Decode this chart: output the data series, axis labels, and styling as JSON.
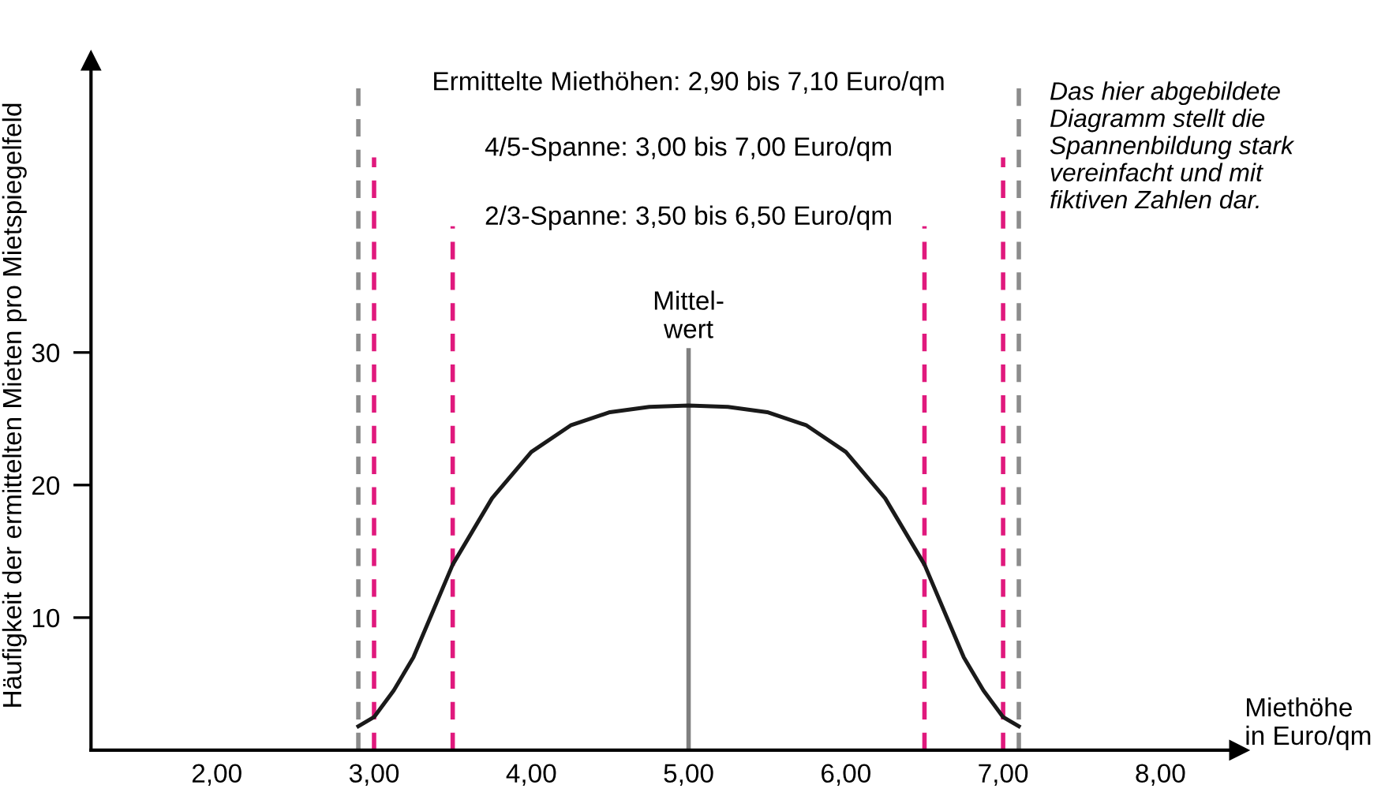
{
  "chart_data": {
    "type": "line",
    "xlabel": "Miethöhe\nin Euro/qm",
    "ylabel": "Häufigkeit der ermittelten Mieten pro Mietspiegelfeld",
    "x": [
      2.9,
      3.0,
      3.125,
      3.25,
      3.375,
      3.5,
      3.625,
      3.75,
      4.0,
      4.25,
      4.5,
      4.75,
      5.0,
      5.25,
      5.5,
      5.75,
      6.0,
      6.25,
      6.375,
      6.5,
      6.625,
      6.75,
      6.875,
      7.0,
      7.1
    ],
    "series": [
      {
        "color": "#1a1a1a",
        "values": [
          1.8,
          2.5,
          4.5,
          7,
          10.5,
          14,
          16.5,
          19,
          22.5,
          24.5,
          25.5,
          25.9,
          26,
          25.9,
          25.5,
          24.5,
          22.5,
          19,
          16.5,
          14,
          10.5,
          7,
          4.5,
          2.5,
          1.8
        ]
      }
    ],
    "xlim": [
      1.2,
      8.5
    ],
    "ylim": [
      0,
      52
    ],
    "xticks": [
      {
        "value": 2,
        "label": "2,00"
      },
      {
        "value": 3,
        "label": "3,00"
      },
      {
        "value": 4,
        "label": "4,00"
      },
      {
        "value": 5,
        "label": "5,00"
      },
      {
        "value": 6,
        "label": "6,00"
      },
      {
        "value": 7,
        "label": "7,00"
      },
      {
        "value": 8,
        "label": "8,00"
      }
    ],
    "yticks": [
      10,
      20,
      30
    ],
    "ref_lines": [
      {
        "axis": "x",
        "value": 2.9,
        "color": "#8c8c8c",
        "line_style": "dashed"
      },
      {
        "axis": "x",
        "value": 7.1,
        "color": "#8c8c8c",
        "line_style": "dashed"
      },
      {
        "axis": "x",
        "value": 3.0,
        "color": "#e0197d",
        "line_style": "dashed"
      },
      {
        "axis": "x",
        "value": 7.0,
        "color": "#e0197d",
        "line_style": "dashed"
      },
      {
        "axis": "x",
        "value": 3.5,
        "color": "#e0197d",
        "line_style": "dashed"
      },
      {
        "axis": "x",
        "value": 6.5,
        "color": "#e0197d",
        "line_style": "dashed"
      },
      {
        "axis": "x",
        "value": 5.0,
        "color": "#808080",
        "line_style": "solid",
        "label": "Mittel-\nwert"
      }
    ],
    "annotations": [
      "Ermittelte Miethöhen: 2,90 bis 7,10 Euro/qm",
      "4/5-Spanne: 3,00 bis 7,00 Euro/qm",
      "2/3-Spanne: 3,50 bis 6,50 Euro/qm",
      "Das hier abgebildete\nDiagramm stellt die\nSpannenbildung stark\nvereinfacht und mit\nfiktiven Zahlen dar."
    ],
    "grid": false,
    "legend": false,
    "marker": "none",
    "line_style": "solid"
  }
}
